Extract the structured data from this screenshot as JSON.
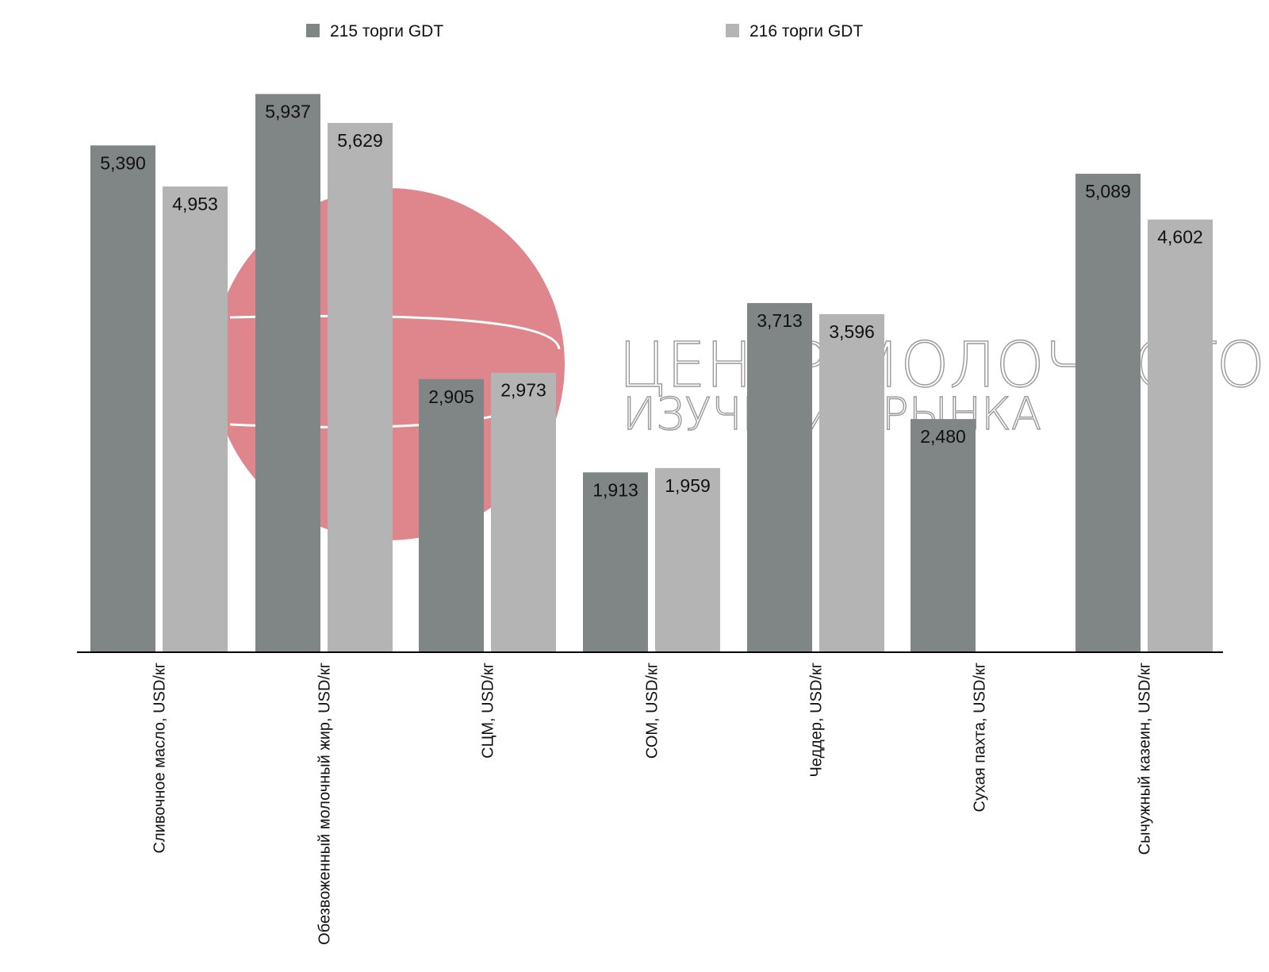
{
  "chart_data": {
    "type": "bar",
    "title": "",
    "xlabel": "",
    "ylabel": "",
    "ylim": [
      0,
      6000
    ],
    "grid": false,
    "legend_position": "top",
    "categories": [
      "Сливочное масло, USD/кг",
      "Обезвоженный молочный жир, USD/кг",
      "СЦМ, USD/кг",
      "СОМ, USD/кг",
      "Чеддер, USD/кг",
      "Сухая пахта, USD/кг",
      "Сычужный казеин, USD/кг"
    ],
    "series": [
      {
        "name": "215 торги GDT",
        "color": "#808585",
        "values": [
          5.39,
          5.937,
          2.905,
          1.913,
          3.713,
          2.48,
          5.089
        ],
        "labels": [
          "5,390",
          "5,937",
          "2,905",
          "1,913",
          "3,713",
          "2,480",
          "5,089"
        ]
      },
      {
        "name": "216 торги GDT",
        "color": "#b4b4b4",
        "values": [
          4.953,
          5.629,
          2.973,
          1.959,
          3.596,
          null,
          4.602
        ],
        "labels": [
          "4,953",
          "5,629",
          "2,973",
          "1,959",
          "3,596",
          "",
          "4,602"
        ]
      }
    ]
  },
  "watermark": {
    "logo_color": "#df858c",
    "line1": "ЦЕНТР МОЛОЧНОГО",
    "line2": "ИЗУЧЕНИЯ РЫНКА"
  }
}
